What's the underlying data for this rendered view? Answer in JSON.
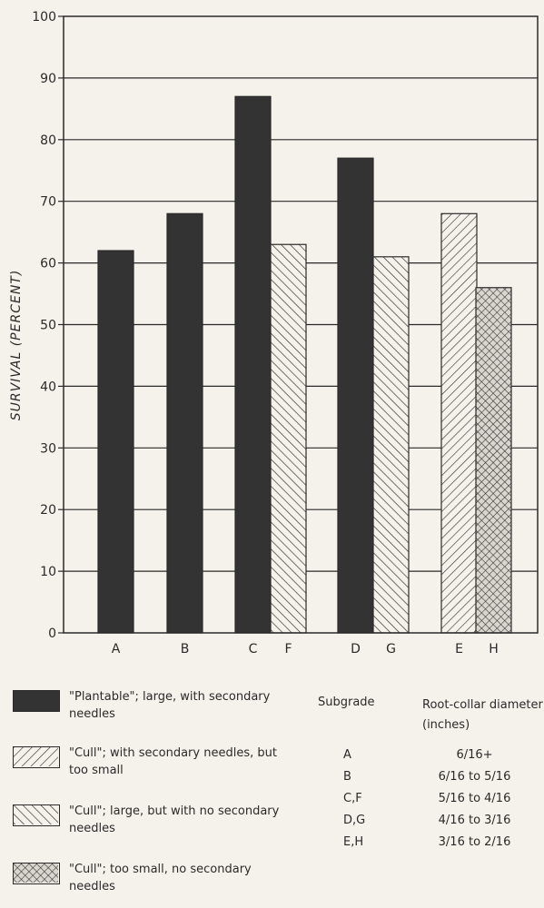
{
  "chart_data": {
    "type": "bar",
    "ylabel": "SURVIVAL (PERCENT)",
    "ylim": [
      0,
      100
    ],
    "yticks": [
      0,
      10,
      20,
      30,
      40,
      50,
      60,
      70,
      80,
      90,
      100
    ],
    "grid": "horizontal",
    "categories": [
      "A",
      "B",
      "C",
      "F",
      "D",
      "G",
      "E",
      "H"
    ],
    "bars": [
      {
        "label": "A",
        "value": 62,
        "pattern": "solid"
      },
      {
        "label": "B",
        "value": 68,
        "pattern": "solid"
      },
      {
        "label": "C",
        "value": 87,
        "pattern": "solid"
      },
      {
        "label": "F",
        "value": 63,
        "pattern": "diag-dense"
      },
      {
        "label": "D",
        "value": 77,
        "pattern": "solid"
      },
      {
        "label": "G",
        "value": 61,
        "pattern": "diag-dense"
      },
      {
        "label": "E",
        "value": 68,
        "pattern": "diag-sparse"
      },
      {
        "label": "H",
        "value": 56,
        "pattern": "crosshatch"
      }
    ],
    "colors": {
      "solid": "#333333",
      "line": "#2a2a2a",
      "background": "#f4f2ea"
    }
  },
  "legend": [
    {
      "pattern": "solid",
      "text": "\"Plantable\"; large, with secondary needles"
    },
    {
      "pattern": "diag-sparse",
      "text": "\"Cull\"; with secondary needles, but too small"
    },
    {
      "pattern": "diag-dense",
      "text": "\"Cull\"; large, but with no secondary needles"
    },
    {
      "pattern": "crosshatch",
      "text": "\"Cull\"; too small, no secondary needles"
    }
  ],
  "table": {
    "header_subgrade": "Subgrade",
    "header_diameter": "Root-collar diameter (inches)",
    "rows": [
      {
        "subgrade": "A",
        "diameter": "6/16+"
      },
      {
        "subgrade": "B",
        "diameter": "6/16 to 5/16"
      },
      {
        "subgrade": "C,F",
        "diameter": "5/16 to 4/16"
      },
      {
        "subgrade": "D,G",
        "diameter": "4/16 to 3/16"
      },
      {
        "subgrade": "E,H",
        "diameter": "3/16 to 2/16"
      }
    ]
  }
}
